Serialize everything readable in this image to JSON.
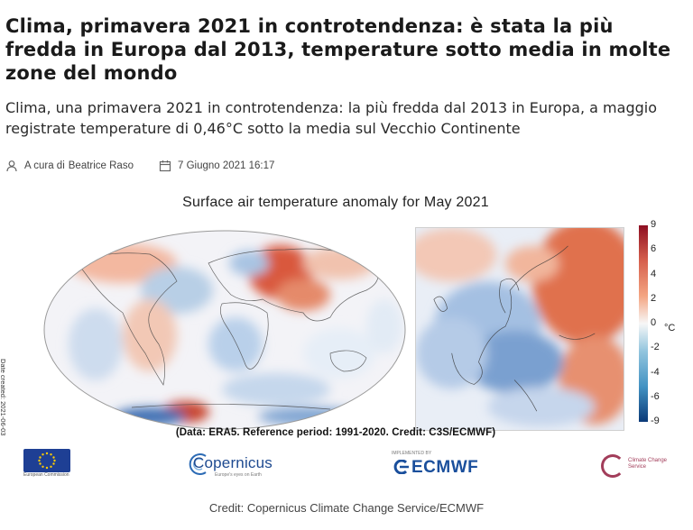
{
  "article": {
    "headline": "Clima, primavera 2021 in controtendenza: è stata la più fredda in Europa dal 2013, temperature sotto media in molte zone del mondo",
    "subheadline": "Clima, una primavera 2021 in controtendenza: la più fredda dal 2013 in Europa, a maggio registrate temperature di 0,46°C sotto la media sul Vecchio Continente",
    "author_prefix": "A cura di",
    "author": "Beatrice Raso",
    "date": "7 Giugno 2021 16:17",
    "author_icon": "user-icon",
    "date_icon": "calendar-icon"
  },
  "figure": {
    "title": "Surface air temperature anomaly for May 2021",
    "date_created": "Date created: 2021-06-03",
    "caption": "(Data: ERA5.  Reference period: 1991-2020.  Credit: C3S/ECMWF)",
    "colorbar": {
      "ticks": [
        "9",
        "6",
        "4",
        "2",
        "0",
        "-2",
        "-4",
        "-6",
        "-9"
      ],
      "unit": "°C",
      "colors": {
        "warm": "#b2182b",
        "neutral": "#f7f7f7",
        "cold": "#2166ac"
      }
    },
    "logos": {
      "eu": {
        "icon": "eu-flag-icon",
        "text": "European Commission"
      },
      "copernicus": {
        "text": "Copernicus",
        "sub": "Europe's eyes on Earth"
      },
      "ecmwf": {
        "text": "ECMWF",
        "sup": "IMPLEMENTED BY"
      },
      "c3s": {
        "text": "Climate Change Service"
      }
    }
  },
  "credit": "Credit: Copernicus Climate Change Service/ECMWF"
}
